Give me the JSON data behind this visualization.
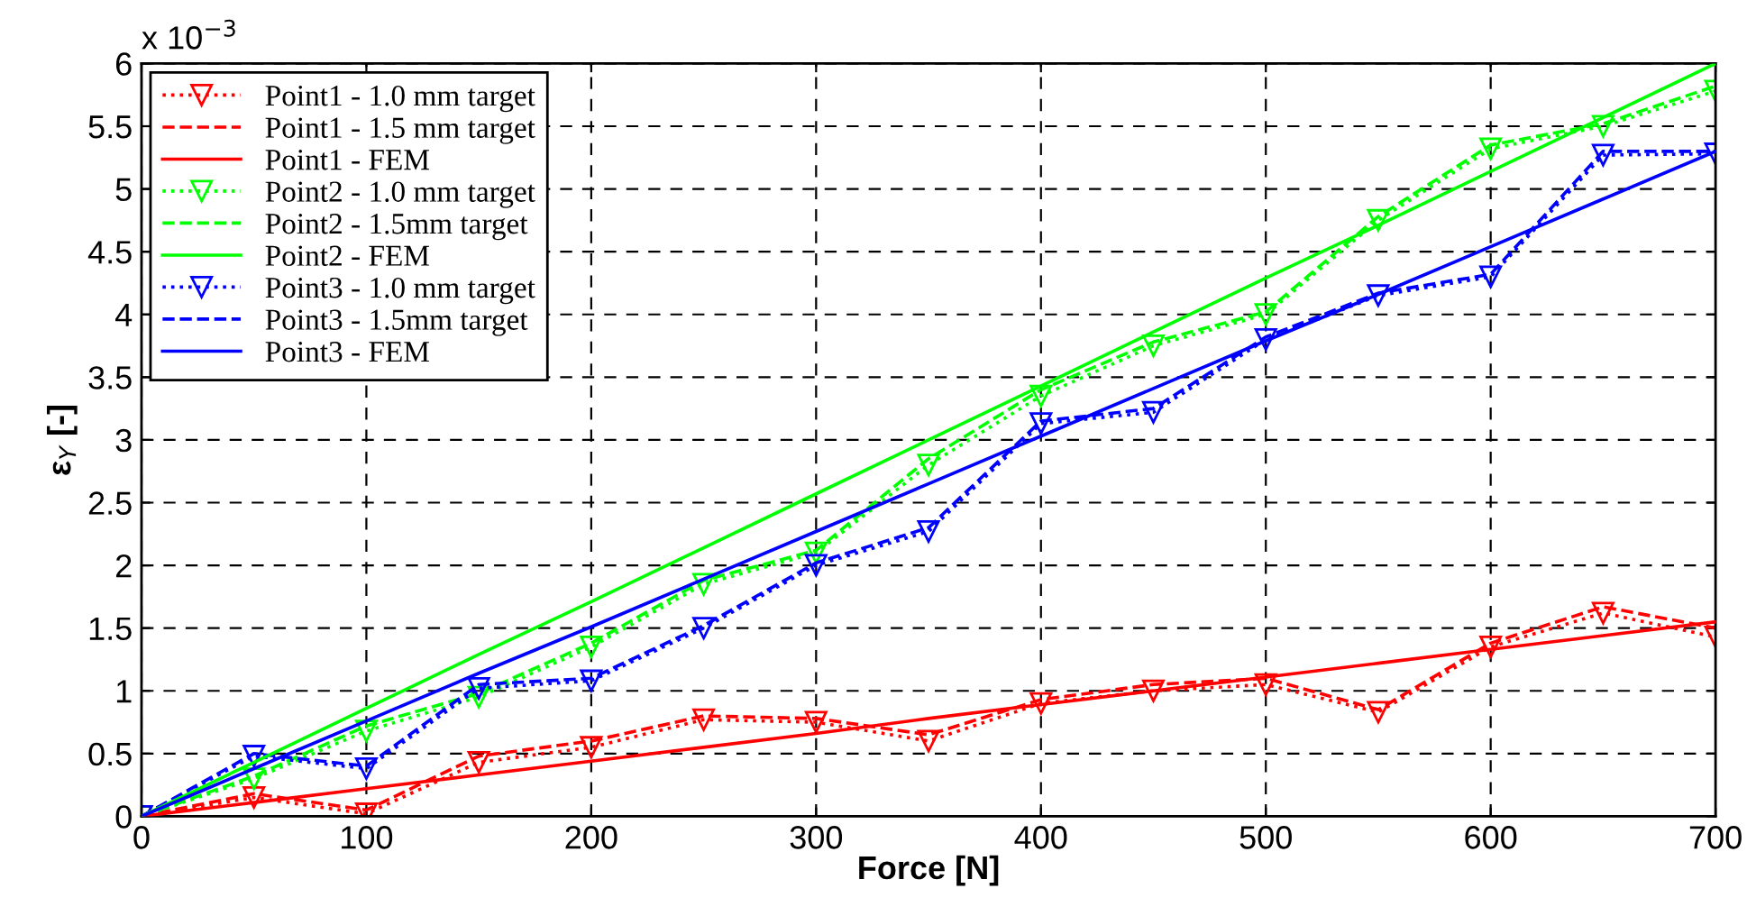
{
  "chart_data": {
    "type": "line",
    "xlabel": "Force [N]",
    "ylabel": "ε$_{Y}$ [-]",
    "annotations": [
      "x 10$^{−3}$"
    ],
    "x": [
      0,
      50,
      100,
      150,
      200,
      250,
      300,
      350,
      400,
      450,
      500,
      550,
      600,
      650,
      700
    ],
    "xlim": [
      0,
      700
    ],
    "xticks": [
      0,
      100,
      200,
      300,
      400,
      500,
      600,
      700
    ],
    "ylim": [
      0,
      6
    ],
    "yticks": [
      0,
      0.5,
      1,
      1.5,
      2,
      2.5,
      3,
      3.5,
      4,
      4.5,
      5,
      5.5,
      6
    ],
    "grid": true,
    "legend": "top left",
    "series": [
      {
        "name": "Point1 - 1.0 mm target",
        "color": "#ff0000",
        "line_style": "dotted",
        "marker": "triangle",
        "values": [
          0,
          0.15,
          0.02,
          0.43,
          0.55,
          0.77,
          0.75,
          0.6,
          0.9,
          1.0,
          1.05,
          0.83,
          1.35,
          1.62,
          1.43
        ]
      },
      {
        "name": "Point1 - 1.5 mm target",
        "color": "#ff0000",
        "line_style": "dashed",
        "values": [
          0,
          0.18,
          0.05,
          0.48,
          0.6,
          0.8,
          0.78,
          0.65,
          0.93,
          1.05,
          1.1,
          0.85,
          1.38,
          1.67,
          1.5
        ]
      },
      {
        "name": "Point1 - FEM",
        "color": "#ff0000",
        "line_style": "solid",
        "values": [
          0,
          0.11,
          0.22,
          0.33,
          0.44,
          0.55,
          0.66,
          0.78,
          0.89,
          1.0,
          1.11,
          1.22,
          1.33,
          1.44,
          1.55
        ]
      },
      {
        "name": "Point2 - 1.0 mm target",
        "color": "#00ff00",
        "line_style": "dotted",
        "marker": "triangle",
        "values": [
          0,
          0.3,
          0.68,
          0.95,
          1.35,
          1.85,
          2.1,
          2.8,
          3.35,
          3.75,
          4.0,
          4.75,
          5.32,
          5.5,
          5.78
        ]
      },
      {
        "name": "Point2 - 1.5mm target",
        "color": "#00ff00",
        "line_style": "dashed",
        "values": [
          0,
          0.32,
          0.72,
          0.98,
          1.38,
          1.88,
          2.12,
          2.85,
          3.4,
          3.78,
          4.02,
          4.78,
          5.35,
          5.52,
          5.82
        ]
      },
      {
        "name": "Point2 - FEM",
        "color": "#00ff00",
        "line_style": "solid",
        "values": [
          0,
          0.43,
          0.86,
          1.29,
          1.71,
          2.14,
          2.57,
          3.0,
          3.43,
          3.86,
          4.29,
          4.71,
          5.14,
          5.57,
          6.0
        ]
      },
      {
        "name": "Point3 - 1.0 mm target",
        "color": "#0000ff",
        "line_style": "dotted",
        "marker": "triangle",
        "values": [
          0,
          0.48,
          0.38,
          1.02,
          1.08,
          1.5,
          2.0,
          2.27,
          3.13,
          3.22,
          3.8,
          4.15,
          4.3,
          5.27,
          5.28
        ]
      },
      {
        "name": "Point3 - 1.5mm target",
        "color": "#0000ff",
        "line_style": "dashed",
        "values": [
          0,
          0.5,
          0.4,
          1.05,
          1.1,
          1.52,
          2.02,
          2.3,
          3.15,
          3.25,
          3.82,
          4.17,
          4.32,
          5.3,
          5.3
        ]
      },
      {
        "name": "Point3 - FEM",
        "color": "#0000ff",
        "line_style": "solid",
        "values": [
          0,
          0.38,
          0.76,
          1.14,
          1.51,
          1.89,
          2.27,
          2.65,
          3.03,
          3.41,
          3.79,
          4.16,
          4.54,
          4.92,
          5.3
        ]
      }
    ]
  }
}
